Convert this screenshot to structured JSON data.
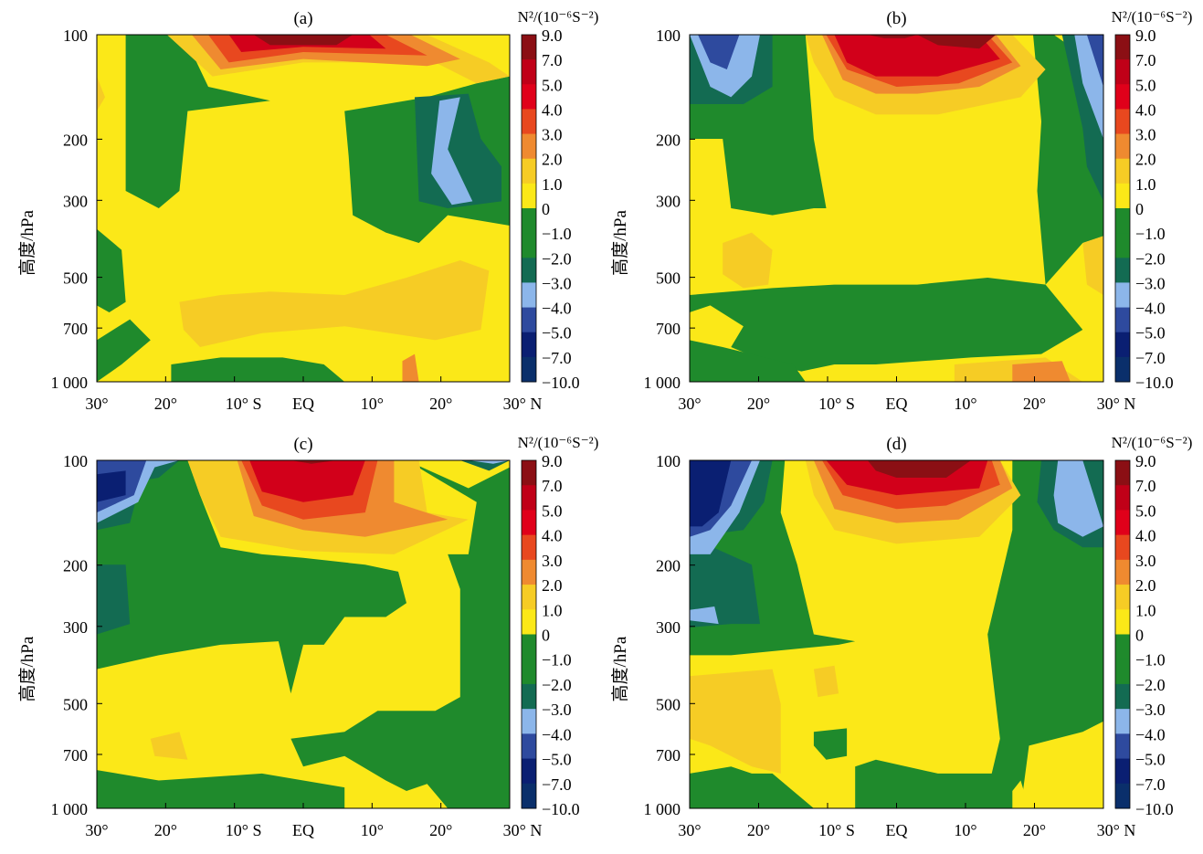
{
  "chart_data": [
    {
      "type": "heatmap",
      "title": "(a)",
      "xlabel": "",
      "ylabel": "高度/hPa",
      "colorbar_title": "N²/(10⁻⁶S⁻²)",
      "x_tick_labels": [
        "30°",
        "20°",
        "10° S",
        "EQ",
        "10°",
        "20°",
        "30° N"
      ],
      "y_tick_labels": [
        "100",
        "200",
        "300",
        "500",
        "700",
        "1 000"
      ],
      "x_range": [
        -30,
        30
      ],
      "y_range_hPa": [
        100,
        1000
      ],
      "levels": [
        "9.0",
        "7.0",
        "5.0",
        "4.0",
        "3.0",
        "2.0",
        "1.0",
        "0",
        "−1.0",
        "−2.0",
        "−3.0",
        "−4.0",
        "−5.0",
        "−7.0",
        "−10.0"
      ],
      "features": [
        {
          "region": "upper tropics 100-150 hPa",
          "max_level": "9.0",
          "lon": [
            -10,
            10
          ]
        },
        {
          "region": "20N 150-300 hPa",
          "min_level": "−4.0"
        },
        {
          "region": "subtropical 100-300 hPa",
          "level": "−1.0"
        },
        {
          "region": "mid-lower troposphere",
          "level": "0 to 2.0"
        }
      ]
    },
    {
      "type": "heatmap",
      "title": "(b)",
      "xlabel": "",
      "ylabel": "高度/hPa",
      "colorbar_title": "N²/(10⁻⁶S⁻²)",
      "x_tick_labels": [
        "30°",
        "20°",
        "10° S",
        "EQ",
        "10°",
        "20°",
        "30° N"
      ],
      "y_tick_labels": [
        "100",
        "200",
        "300",
        "500",
        "700",
        "1 000"
      ],
      "x_range": [
        -30,
        30
      ],
      "y_range_hPa": [
        100,
        1000
      ],
      "levels": [
        "9.0",
        "7.0",
        "5.0",
        "4.0",
        "3.0",
        "2.0",
        "1.0",
        "0",
        "−1.0",
        "−2.0",
        "−3.0",
        "−4.0",
        "−5.0",
        "−7.0",
        "−10.0"
      ],
      "features": [
        {
          "region": "upper tropics 100-150 hPa",
          "max_level": "9.0"
        },
        {
          "region": "25S and 30N near 100 hPa",
          "min_level": "−5.0"
        },
        {
          "region": "20N-30N near 1000 hPa",
          "level": "2.0 to 3.0"
        }
      ]
    },
    {
      "type": "heatmap",
      "title": "(c)",
      "xlabel": "",
      "ylabel": "高度/hPa",
      "colorbar_title": "N²/(10⁻⁶S⁻²)",
      "x_tick_labels": [
        "30°",
        "20°",
        "10° S",
        "EQ",
        "10°",
        "20°",
        "30° N"
      ],
      "y_tick_labels": [
        "100",
        "200",
        "300",
        "500",
        "700",
        "1 000"
      ],
      "x_range": [
        -30,
        30
      ],
      "y_range_hPa": [
        100,
        1000
      ],
      "levels": [
        "9.0",
        "7.0",
        "5.0",
        "4.0",
        "3.0",
        "2.0",
        "1.0",
        "0",
        "−1.0",
        "−2.0",
        "−3.0",
        "−4.0",
        "−5.0",
        "−7.0",
        "−10.0"
      ],
      "features": [
        {
          "region": "upper tropics 100-150 hPa",
          "max_level": "9.0"
        },
        {
          "region": "30S near 100 hPa",
          "min_level": "−7.0"
        },
        {
          "region": "200-450 hPa",
          "level": "−1.0"
        }
      ]
    },
    {
      "type": "heatmap",
      "title": "(d)",
      "xlabel": "",
      "ylabel": "高度/hPa",
      "colorbar_title": "N²/(10⁻⁶S⁻²)",
      "x_tick_labels": [
        "30°",
        "20°",
        "10° S",
        "EQ",
        "10°",
        "20°",
        "30° N"
      ],
      "y_tick_labels": [
        "100",
        "200",
        "300",
        "500",
        "700",
        "1 000"
      ],
      "x_range": [
        -30,
        30
      ],
      "y_range_hPa": [
        100,
        1000
      ],
      "levels": [
        "9.0",
        "7.0",
        "5.0",
        "4.0",
        "3.0",
        "2.0",
        "1.0",
        "0",
        "−1.0",
        "−2.0",
        "−3.0",
        "−4.0",
        "−5.0",
        "−7.0",
        "−10.0"
      ],
      "features": [
        {
          "region": "upper tropics 100-130 hPa",
          "max_level": "9.0"
        },
        {
          "region": "30S 100-150 hPa",
          "min_level": "−7.0"
        },
        {
          "region": "25N 120-160 hPa",
          "min_level": "−4.0"
        }
      ]
    }
  ],
  "colors": {
    "levels": [
      "#8b0f14",
      "#c00018",
      "#e0001a",
      "#e8481f",
      "#ef8a30",
      "#f6cc25",
      "#fbe818",
      "#1f8a2c",
      "#1f8a2c",
      "#136b52",
      "#8cb6ea",
      "#2e4a9e",
      "#0a1f72",
      "#0a2f6b"
    ],
    "fill": {
      "deepred": "#8b0f14",
      "red": "#d2001a",
      "redorange": "#e8481f",
      "orange": "#ef8a30",
      "gold": "#f6cc25",
      "yellow": "#fbe818",
      "green": "#1f8a2c",
      "teal": "#136b52",
      "lightblue": "#8cb6ea",
      "blue": "#2e4a9e",
      "navy": "#0a1f72"
    }
  }
}
